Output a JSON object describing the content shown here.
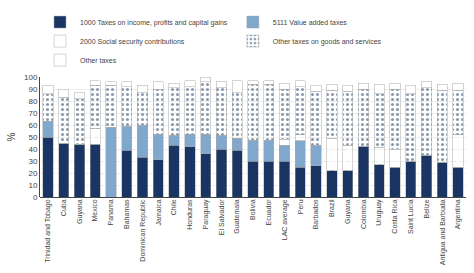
{
  "chart_data": {
    "type": "bar",
    "stacked": true,
    "categories": [
      "Trinidad and Tobago",
      "Cuba",
      "Guyana",
      "Mexico",
      "Panama",
      "Bahamas",
      "Dominican Republic",
      "Jamaica",
      "Chile",
      "Honduras",
      "Paraguay",
      "El Salvador",
      "Guatemala",
      "Bolivia",
      "Ecuador",
      "LAC average",
      "Peru",
      "Barbados",
      "Brazil",
      "Guyana",
      "Colombia",
      "Uruguay",
      "Costa Rica",
      "Saint Lucia",
      "Belize",
      "Antigua and Barbuda",
      "Argentina"
    ],
    "series": [
      {
        "name": "1000 Taxes on income, profits and capital gains",
        "color": "#1a3564",
        "values": [
          50,
          45,
          44,
          44,
          0,
          39,
          33,
          31,
          43,
          42,
          36,
          40,
          39,
          30,
          30,
          30,
          25,
          26,
          22,
          22,
          42,
          27,
          25,
          30,
          35,
          29,
          25
        ]
      },
      {
        "name": "5111 Value added taxes",
        "color": "#7fa8cc",
        "values": [
          13,
          0,
          0,
          0,
          58,
          20,
          27,
          21,
          8,
          10,
          16,
          11,
          10,
          17,
          17,
          13,
          22,
          17,
          0,
          0,
          0,
          0,
          0,
          0,
          0,
          0,
          0
        ]
      },
      {
        "name": "2000 Social security contributions",
        "color": "#1a3564",
        "marker": "hatch",
        "values": [
          0,
          0,
          0,
          13,
          0,
          0,
          0,
          0,
          0,
          0,
          0,
          0,
          0,
          0,
          0,
          5,
          5,
          0,
          27,
          21,
          0,
          14,
          15,
          0,
          0,
          0,
          27
        ]
      },
      {
        "name": "Other taxes on goods and services",
        "color": "#c8d8e8",
        "marker": "dots",
        "values": [
          23,
          38,
          38,
          36,
          35,
          33,
          27,
          38,
          40,
          40,
          44,
          40,
          38,
          47,
          47,
          42,
          40,
          45,
          40,
          45,
          48,
          45,
          50,
          56,
          56,
          60,
          37
        ]
      },
      {
        "name": "Other taxes",
        "color": "#ffffff",
        "values": [
          7,
          7,
          5,
          4,
          3,
          4,
          6,
          6,
          4,
          5,
          4,
          5,
          10,
          3,
          3,
          5,
          5,
          5,
          5,
          5,
          5,
          8,
          5,
          7,
          5,
          5,
          6
        ]
      }
    ],
    "ylabel": "%",
    "ylim": [
      0,
      100
    ],
    "yticks": [
      0,
      10,
      20,
      30,
      40,
      50,
      60,
      70,
      80,
      90,
      100
    ],
    "grid": true,
    "legend": "upper left"
  }
}
